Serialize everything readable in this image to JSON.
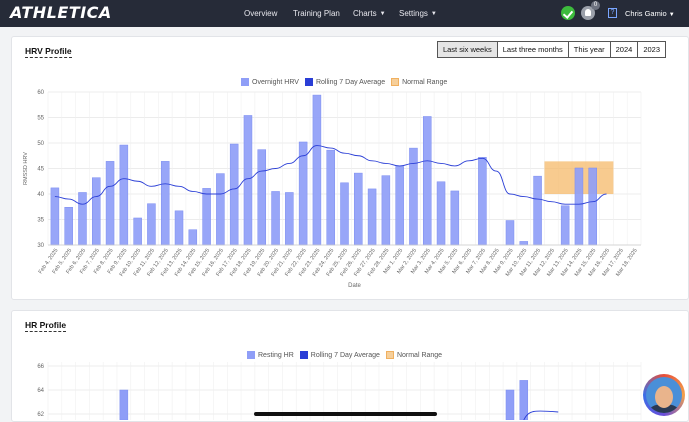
{
  "app": {
    "logo": "ATHLETICA",
    "nav": [
      "Overview",
      "Training Plan",
      "Charts",
      "Settings"
    ],
    "notification_count": "0",
    "help_label": "?",
    "user_name": "Chris Gamio"
  },
  "hrv_card": {
    "title": "HRV Profile",
    "ranges": [
      "Last six weeks",
      "Last three months",
      "This year",
      "2024",
      "2023"
    ],
    "active_range": "Last six weeks"
  },
  "hr_card": {
    "title": "HR Profile"
  },
  "chart_data": [
    {
      "type": "bar",
      "ylabel": "RMSSD HRV",
      "xlabel": "Date",
      "ylim": [
        30,
        60
      ],
      "yticks": [
        30,
        35,
        40,
        45,
        50,
        55,
        60
      ],
      "grid": true,
      "legend_placement": "top-center",
      "legend": [
        "Overnight HRV",
        "Rolling 7 Day Average",
        "Normal Range"
      ],
      "colors": {
        "bar": "#8f9ef7",
        "bar_border": "#7b8cf0",
        "line": "#2a3ed6",
        "range": "#f6b96a"
      },
      "categories": [
        "Feb 4, 2025",
        "Feb 5, 2025",
        "Feb 6, 2025",
        "Feb 7, 2025",
        "Feb 8, 2025",
        "Feb 9, 2025",
        "Feb 10, 2025",
        "Feb 11, 2025",
        "Feb 12, 2025",
        "Feb 13, 2025",
        "Feb 14, 2025",
        "Feb 15, 2025",
        "Feb 16, 2025",
        "Feb 17, 2025",
        "Feb 18, 2025",
        "Feb 19, 2025",
        "Feb 20, 2025",
        "Feb 21, 2025",
        "Feb 22, 2025",
        "Feb 23, 2025",
        "Feb 24, 2025",
        "Feb 25, 2025",
        "Feb 26, 2025",
        "Feb 27, 2025",
        "Feb 28, 2025",
        "Mar 1, 2025",
        "Mar 2, 2025",
        "Mar 3, 2025",
        "Mar 4, 2025",
        "Mar 5, 2025",
        "Mar 6, 2025",
        "Mar 7, 2025",
        "Mar 8, 2025",
        "Mar 9, 2025",
        "Mar 10, 2025",
        "Mar 11, 2025",
        "Mar 12, 2025",
        "Mar 13, 2025",
        "Mar 14, 2025",
        "Mar 15, 2025",
        "Mar 16, 2025",
        "Mar 17, 2025",
        "Mar 18, 2025"
      ],
      "series": [
        {
          "name": "Overnight HRV",
          "values": [
            41.2,
            37.4,
            40.3,
            43.2,
            46.4,
            49.6,
            35.3,
            38.1,
            46.4,
            36.7,
            33.0,
            41.1,
            44.0,
            49.8,
            55.4,
            48.7,
            40.5,
            40.3,
            50.2,
            59.4,
            48.6,
            42.2,
            44.1,
            41.0,
            43.6,
            45.4,
            49.0,
            55.2,
            42.4,
            40.6,
            null,
            47.2,
            null,
            34.8,
            30.7,
            43.5,
            null,
            37.7,
            45.1,
            45.1,
            null,
            null,
            null
          ]
        },
        {
          "name": "Rolling 7 Day Average",
          "values": [
            39.5,
            39.0,
            38.0,
            39.5,
            41.5,
            43.0,
            42.5,
            41.5,
            42.0,
            41.5,
            40.5,
            40.0,
            40.0,
            41.0,
            43.0,
            44.5,
            45.0,
            46.0,
            47.5,
            49.5,
            49.0,
            48.0,
            47.5,
            46.5,
            46.0,
            45.5,
            46.0,
            46.5,
            46.0,
            45.5,
            46.5,
            47.0,
            44.5,
            40.0,
            39.5,
            39.0,
            38.5,
            38.0,
            38.0,
            38.5,
            40.0,
            null,
            null
          ]
        }
      ],
      "normal_range": {
        "from": "Mar 12, 2025",
        "to": "Mar 16, 2025",
        "low": 40.0,
        "high": 46.4
      }
    },
    {
      "type": "bar",
      "ylim": [
        62,
        66
      ],
      "yticks": [
        62,
        64,
        66
      ],
      "grid": true,
      "legend_placement": "top-center",
      "legend": [
        "Resting HR",
        "Rolling 7 Day Average",
        "Normal Range"
      ],
      "colors": {
        "bar": "#8f9ef7",
        "line": "#2a3ed6",
        "range": "#f6b96a"
      },
      "visible_bars": [
        {
          "index": 5,
          "value": 64.0
        },
        {
          "index": 33,
          "value": 64.0
        },
        {
          "index": 34,
          "value": 64.8
        }
      ]
    }
  ]
}
